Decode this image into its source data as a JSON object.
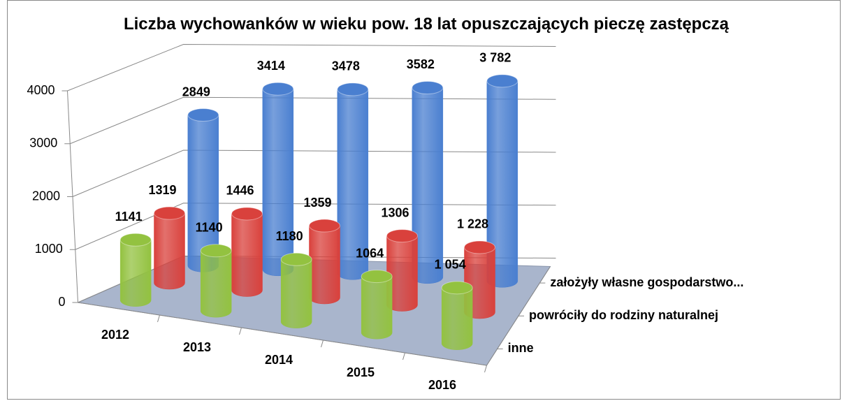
{
  "chart_data": {
    "type": "bar3d_cylinder",
    "title": "Liczba wychowanków w wieku pow. 18 lat opuszczających  pieczę zastępczą",
    "categories": [
      "2012",
      "2013",
      "2014",
      "2015",
      "2016"
    ],
    "series": [
      {
        "name": "założyły własne gospodarstwo...",
        "color": "#4a7fd0",
        "values": [
          2849,
          3414,
          3478,
          3582,
          3782
        ],
        "value_labels": [
          "2849",
          "3414",
          "3478",
          "3582",
          "3 782"
        ]
      },
      {
        "name": "powróciły do rodziny naturalnej",
        "color": "#d9413c",
        "values": [
          1319,
          1446,
          1359,
          1306,
          1228
        ],
        "value_labels": [
          "1319",
          "1446",
          "1359",
          "1306",
          "1 228"
        ]
      },
      {
        "name": "inne",
        "color": "#93c240",
        "values": [
          1141,
          1140,
          1180,
          1064,
          1054
        ],
        "value_labels": [
          "1141",
          "1140",
          "1180",
          "1064",
          "1 054"
        ]
      }
    ],
    "ylim": [
      0,
      4000
    ],
    "yticks": [
      0,
      1000,
      2000,
      3000,
      4000
    ],
    "grid": true
  }
}
